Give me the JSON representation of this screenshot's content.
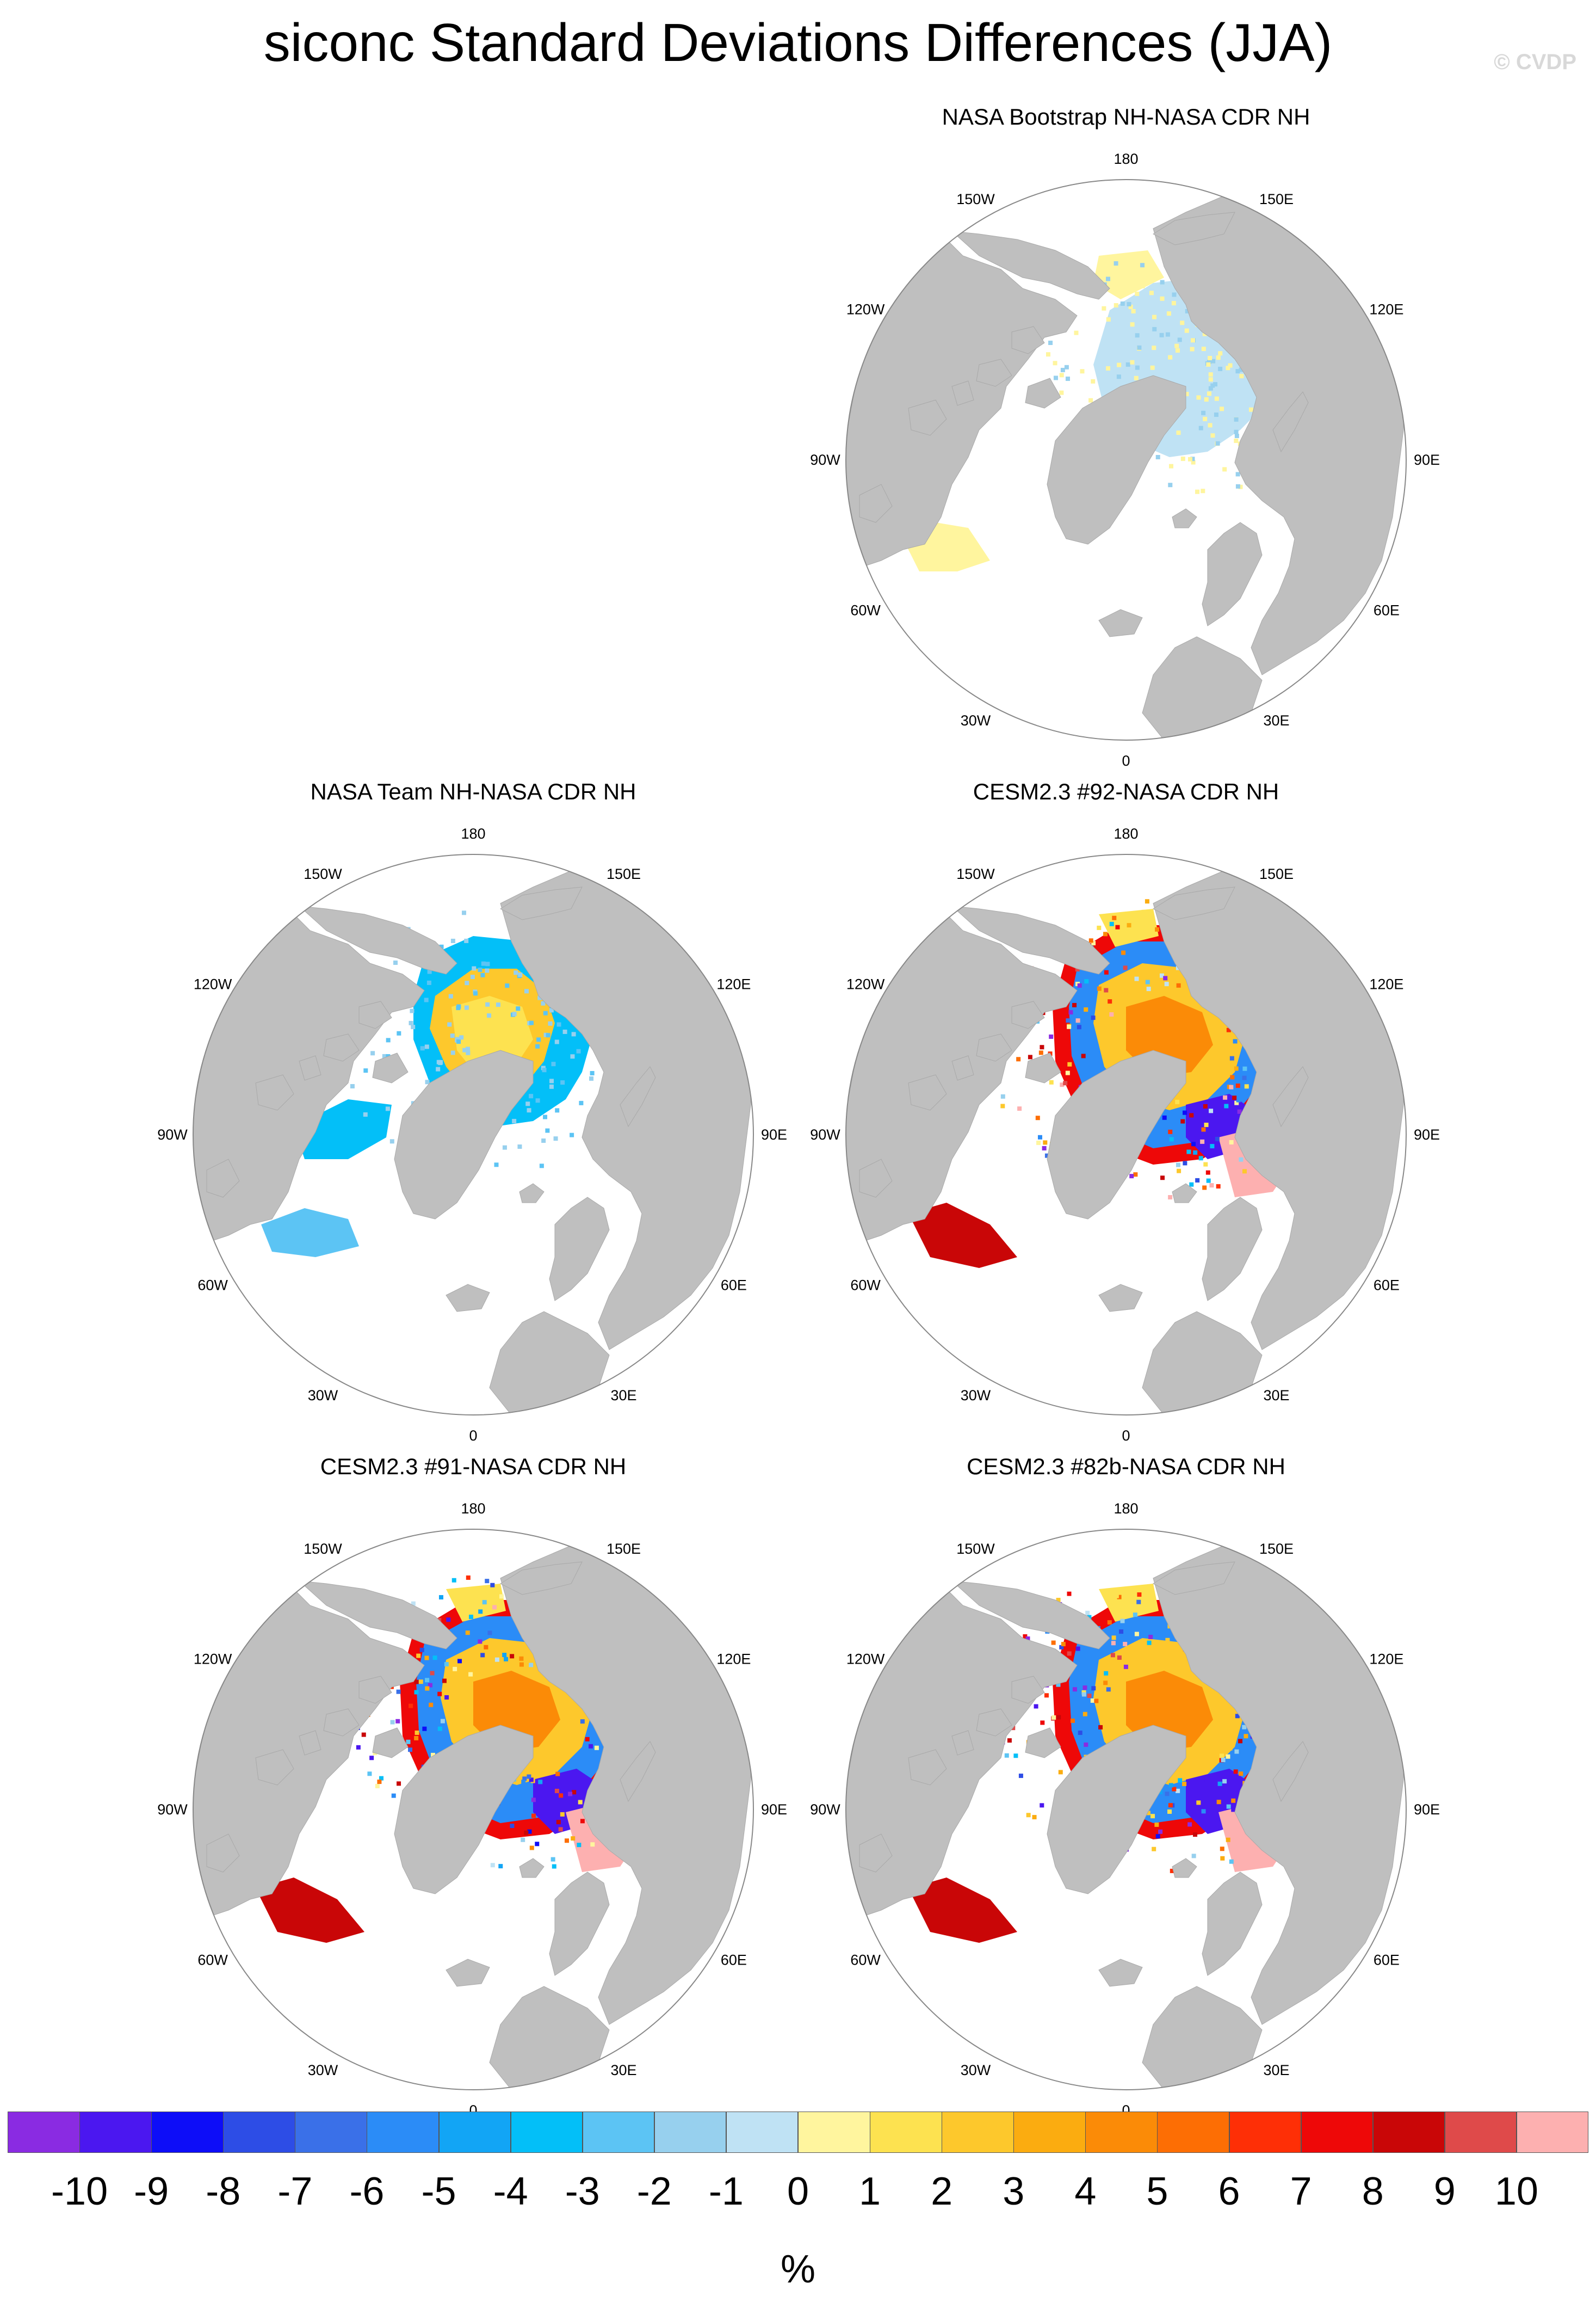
{
  "title": "siconc Standard Deviations Differences (JJA)",
  "credit": "© CVDP",
  "panels": [
    {
      "title": "NASA Bootstrap NH-NASA CDR NH",
      "pattern": "bootstrap"
    },
    {
      "title": "NASA Team NH-NASA CDR NH",
      "pattern": "team"
    },
    {
      "title": "CESM2.3 #92-NASA CDR NH",
      "pattern": "model"
    },
    {
      "title": "CESM2.3 #91-NASA CDR NH",
      "pattern": "model"
    },
    {
      "title": "CESM2.3 #82b-NASA CDR NH",
      "pattern": "model"
    }
  ],
  "longitude_labels": [
    "180",
    "150E",
    "120E",
    "90E",
    "60E",
    "30E",
    "0",
    "30W",
    "60W",
    "90W",
    "120W",
    "150W"
  ],
  "colorbar": {
    "colors": [
      "#8a2be2",
      "#4b17f0",
      "#0d0df8",
      "#2d4de6",
      "#3a70e8",
      "#2b8cf7",
      "#12a5f5",
      "#03bff8",
      "#5cc4f4",
      "#97d0ee",
      "#bfe2f4",
      "#fff59e",
      "#fde250",
      "#fdc82c",
      "#fbac10",
      "#fb8b07",
      "#fd6e04",
      "#fe2f06",
      "#ee0808",
      "#c90607",
      "#df4a4a",
      "#fdb0b0"
    ],
    "labels": [
      "-10",
      "-9",
      "-8",
      "-7",
      "-6",
      "-5",
      "-4",
      "-3",
      "-2",
      "-1",
      "0",
      "1",
      "2",
      "3",
      "4",
      "5",
      "6",
      "7",
      "8",
      "9",
      "10"
    ],
    "units": "%"
  },
  "land_color": "#bfbfbf"
}
